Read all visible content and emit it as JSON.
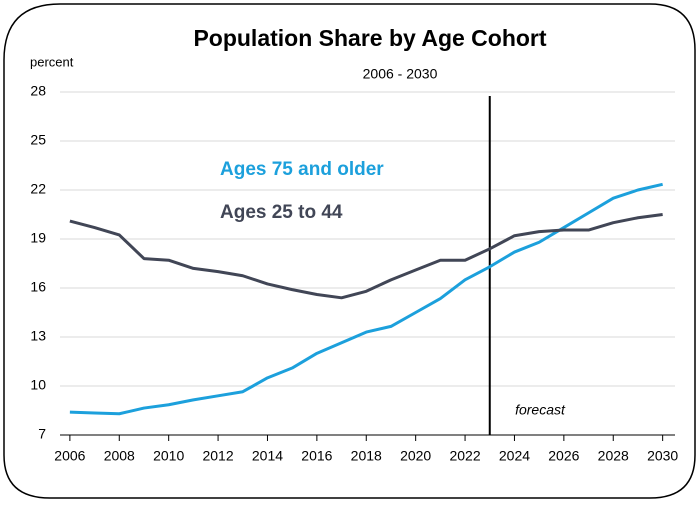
{
  "chart_data": {
    "type": "line",
    "title": "Population Share by Age Cohort",
    "subtitle": "2006 - 2030",
    "y_label": "percent",
    "annotation": "forecast",
    "forecast_x": 2023,
    "x": [
      2006,
      2007,
      2008,
      2009,
      2010,
      2011,
      2012,
      2013,
      2014,
      2015,
      2016,
      2017,
      2018,
      2019,
      2020,
      2021,
      2022,
      2023,
      2024,
      2025,
      2026,
      2027,
      2028,
      2029,
      2030
    ],
    "series": [
      {
        "name": "Ages 75 and older",
        "color": "#1ca0dc",
        "values": [
          8.4,
          8.35,
          8.3,
          8.65,
          8.85,
          9.15,
          9.4,
          9.65,
          10.5,
          11.1,
          12.0,
          12.65,
          13.3,
          13.65,
          14.5,
          15.35,
          16.5,
          17.3,
          18.2,
          18.8,
          19.7,
          20.6,
          21.5,
          22.0,
          22.35
        ]
      },
      {
        "name": "Ages 25 to 44",
        "color": "#414656",
        "values": [
          20.1,
          19.7,
          19.25,
          17.8,
          17.7,
          17.2,
          17.0,
          16.75,
          16.25,
          15.9,
          15.6,
          15.4,
          15.8,
          16.5,
          17.1,
          17.7,
          17.7,
          18.4,
          19.2,
          19.45,
          19.55,
          19.55,
          20.0,
          20.3,
          20.5
        ]
      }
    ],
    "xlim": [
      2005.6,
      2030.5
    ],
    "xticks": [
      2006,
      2008,
      2010,
      2012,
      2014,
      2016,
      2018,
      2020,
      2022,
      2024,
      2026,
      2028,
      2030
    ],
    "ylim": [
      7,
      28
    ],
    "yticks": [
      7,
      10,
      13,
      16,
      19,
      22,
      25,
      28
    ],
    "grid": true
  }
}
